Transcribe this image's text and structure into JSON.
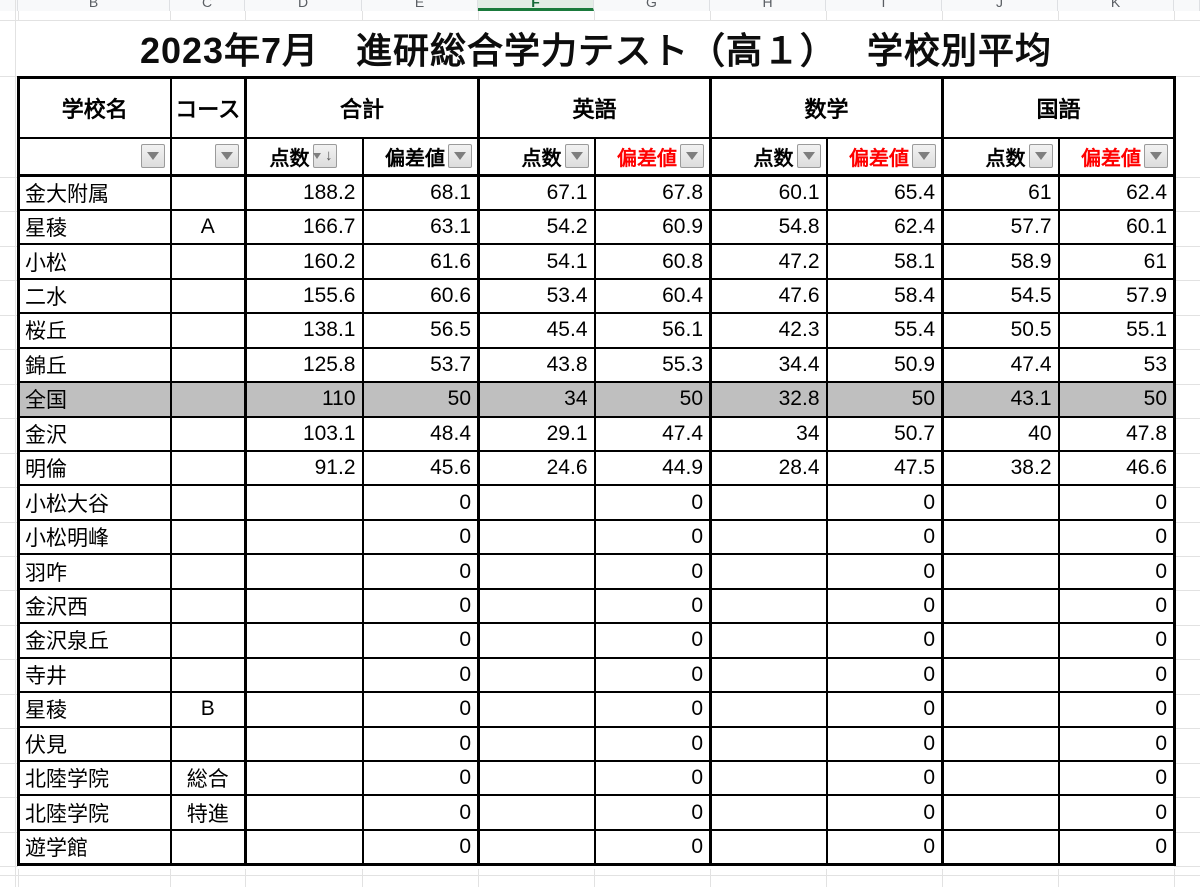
{
  "sheet": {
    "column_letters": [
      "B",
      "C",
      "D",
      "E",
      "F",
      "G",
      "H",
      "I",
      "J",
      "K"
    ],
    "selected_column": "F",
    "selected_underline_color": "#1A7A3C",
    "header_bg": "#F8F9FA"
  },
  "title": "2023年7月　進研総合学力テスト（高１）　 学校別平均",
  "table": {
    "header": {
      "school_label": "学校名",
      "course_label": "コース",
      "dev_label_red_color": "#FF0000",
      "groups": [
        {
          "label": "合計",
          "score_label": "点数",
          "dev_label": "偏差値",
          "dev_red": false,
          "score_sorted_desc": true
        },
        {
          "label": "英語",
          "score_label": "点数",
          "dev_label": "偏差値",
          "dev_red": true,
          "score_sorted_desc": false
        },
        {
          "label": "数学",
          "score_label": "点数",
          "dev_label": "偏差値",
          "dev_red": true,
          "score_sorted_desc": false
        },
        {
          "label": "国語",
          "score_label": "点数",
          "dev_label": "偏差値",
          "dev_red": true,
          "score_sorted_desc": false
        }
      ]
    },
    "highlight_row_bg": "#BFBFBF",
    "sort_desc_glyph": "↓",
    "rows": [
      {
        "school": "金大附属",
        "course": "",
        "total_score": "188.2",
        "total_dev": "68.1",
        "eng_score": "67.1",
        "eng_dev": "67.8",
        "math_score": "60.1",
        "math_dev": "65.4",
        "jpn_score": "61",
        "jpn_dev": "62.4",
        "highlight": false
      },
      {
        "school": "星稜",
        "course": "A",
        "total_score": "166.7",
        "total_dev": "63.1",
        "eng_score": "54.2",
        "eng_dev": "60.9",
        "math_score": "54.8",
        "math_dev": "62.4",
        "jpn_score": "57.7",
        "jpn_dev": "60.1",
        "highlight": false
      },
      {
        "school": "小松",
        "course": "",
        "total_score": "160.2",
        "total_dev": "61.6",
        "eng_score": "54.1",
        "eng_dev": "60.8",
        "math_score": "47.2",
        "math_dev": "58.1",
        "jpn_score": "58.9",
        "jpn_dev": "61",
        "highlight": false
      },
      {
        "school": "二水",
        "course": "",
        "total_score": "155.6",
        "total_dev": "60.6",
        "eng_score": "53.4",
        "eng_dev": "60.4",
        "math_score": "47.6",
        "math_dev": "58.4",
        "jpn_score": "54.5",
        "jpn_dev": "57.9",
        "highlight": false
      },
      {
        "school": "桜丘",
        "course": "",
        "total_score": "138.1",
        "total_dev": "56.5",
        "eng_score": "45.4",
        "eng_dev": "56.1",
        "math_score": "42.3",
        "math_dev": "55.4",
        "jpn_score": "50.5",
        "jpn_dev": "55.1",
        "highlight": false
      },
      {
        "school": "錦丘",
        "course": "",
        "total_score": "125.8",
        "total_dev": "53.7",
        "eng_score": "43.8",
        "eng_dev": "55.3",
        "math_score": "34.4",
        "math_dev": "50.9",
        "jpn_score": "47.4",
        "jpn_dev": "53",
        "highlight": false
      },
      {
        "school": "全国",
        "course": "",
        "total_score": "110",
        "total_dev": "50",
        "eng_score": "34",
        "eng_dev": "50",
        "math_score": "32.8",
        "math_dev": "50",
        "jpn_score": "43.1",
        "jpn_dev": "50",
        "highlight": true
      },
      {
        "school": "金沢",
        "course": "",
        "total_score": "103.1",
        "total_dev": "48.4",
        "eng_score": "29.1",
        "eng_dev": "47.4",
        "math_score": "34",
        "math_dev": "50.7",
        "jpn_score": "40",
        "jpn_dev": "47.8",
        "highlight": false
      },
      {
        "school": "明倫",
        "course": "",
        "total_score": "91.2",
        "total_dev": "45.6",
        "eng_score": "24.6",
        "eng_dev": "44.9",
        "math_score": "28.4",
        "math_dev": "47.5",
        "jpn_score": "38.2",
        "jpn_dev": "46.6",
        "highlight": false
      },
      {
        "school": "小松大谷",
        "course": "",
        "total_score": "",
        "total_dev": "0",
        "eng_score": "",
        "eng_dev": "0",
        "math_score": "",
        "math_dev": "0",
        "jpn_score": "",
        "jpn_dev": "0",
        "highlight": false
      },
      {
        "school": "小松明峰",
        "course": "",
        "total_score": "",
        "total_dev": "0",
        "eng_score": "",
        "eng_dev": "0",
        "math_score": "",
        "math_dev": "0",
        "jpn_score": "",
        "jpn_dev": "0",
        "highlight": false
      },
      {
        "school": "羽咋",
        "course": "",
        "total_score": "",
        "total_dev": "0",
        "eng_score": "",
        "eng_dev": "0",
        "math_score": "",
        "math_dev": "0",
        "jpn_score": "",
        "jpn_dev": "0",
        "highlight": false
      },
      {
        "school": "金沢西",
        "course": "",
        "total_score": "",
        "total_dev": "0",
        "eng_score": "",
        "eng_dev": "0",
        "math_score": "",
        "math_dev": "0",
        "jpn_score": "",
        "jpn_dev": "0",
        "highlight": false
      },
      {
        "school": "金沢泉丘",
        "course": "",
        "total_score": "",
        "total_dev": "0",
        "eng_score": "",
        "eng_dev": "0",
        "math_score": "",
        "math_dev": "0",
        "jpn_score": "",
        "jpn_dev": "0",
        "highlight": false
      },
      {
        "school": "寺井",
        "course": "",
        "total_score": "",
        "total_dev": "0",
        "eng_score": "",
        "eng_dev": "0",
        "math_score": "",
        "math_dev": "0",
        "jpn_score": "",
        "jpn_dev": "0",
        "highlight": false
      },
      {
        "school": "星稜",
        "course": "B",
        "total_score": "",
        "total_dev": "0",
        "eng_score": "",
        "eng_dev": "0",
        "math_score": "",
        "math_dev": "0",
        "jpn_score": "",
        "jpn_dev": "0",
        "highlight": false
      },
      {
        "school": "伏見",
        "course": "",
        "total_score": "",
        "total_dev": "0",
        "eng_score": "",
        "eng_dev": "0",
        "math_score": "",
        "math_dev": "0",
        "jpn_score": "",
        "jpn_dev": "0",
        "highlight": false
      },
      {
        "school": "北陸学院",
        "course": "総合",
        "total_score": "",
        "total_dev": "0",
        "eng_score": "",
        "eng_dev": "0",
        "math_score": "",
        "math_dev": "0",
        "jpn_score": "",
        "jpn_dev": "0",
        "highlight": false
      },
      {
        "school": "北陸学院",
        "course": "特進",
        "total_score": "",
        "total_dev": "0",
        "eng_score": "",
        "eng_dev": "0",
        "math_score": "",
        "math_dev": "0",
        "jpn_score": "",
        "jpn_dev": "0",
        "highlight": false
      },
      {
        "school": "遊学館",
        "course": "",
        "total_score": "",
        "total_dev": "0",
        "eng_score": "",
        "eng_dev": "0",
        "math_score": "",
        "math_dev": "0",
        "jpn_score": "",
        "jpn_dev": "0",
        "highlight": false
      }
    ]
  }
}
